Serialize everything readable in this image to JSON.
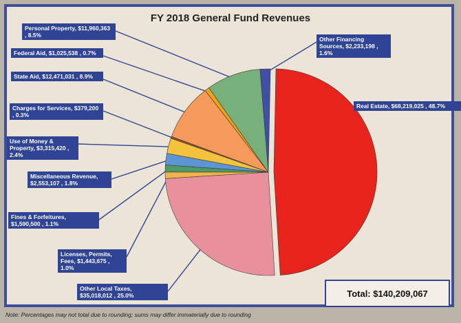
{
  "chart_data": {
    "type": "pie",
    "title": "FY 2018 General Fund Revenues",
    "slices": [
      {
        "name": "Real Estate",
        "amount": "$68,219,025",
        "percent": "48.7%",
        "value": 48.7,
        "color": "#e8231c",
        "label": "Real Estate, $68,219,025 , 48.7%"
      },
      {
        "name": "Other Local Taxes",
        "amount": "$35,018,012",
        "percent": "25.0%",
        "value": 25.0,
        "color": "#e8919c",
        "label": "Other Local Taxes, $35,018,012 , 25.0%"
      },
      {
        "name": "Licenses, Permits, Fees",
        "amount": "$1,443,675",
        "percent": "1.0%",
        "value": 1.0,
        "color": "#f2b24e",
        "label": "Licenses, Permits, Fees, $1,443,675 , 1.0%"
      },
      {
        "name": "Fines & Forfeitures",
        "amount": "$1,590,500",
        "percent": "1.1%",
        "value": 1.1,
        "color": "#4f9a62",
        "label": "Fines & Forfeitures, $1,590,500 , 1.1%"
      },
      {
        "name": "Miscellaneous Revenue",
        "amount": "$2,553,107",
        "percent": "1.8%",
        "value": 1.8,
        "color": "#5b95d4",
        "label": "Miscellaneous Revenue, $2,553,107 , 1.8%"
      },
      {
        "name": "Use of Money & Property",
        "amount": "$3,315,420",
        "percent": "2.4%",
        "value": 2.4,
        "color": "#f5c23e",
        "label": "Use of Money & Property, $3,315,420 , 2.4%"
      },
      {
        "name": "Charges for Services",
        "amount": "$379,200",
        "percent": "0.3%",
        "value": 0.3,
        "color": "#8f4d32",
        "label": "Charges for Services, $379,200 , 0.3%"
      },
      {
        "name": "State Aid",
        "amount": "$12,471,031",
        "percent": "8.9%",
        "value": 8.9,
        "color": "#f59a5a",
        "label": "State Aid, $12,471,031 , 8.9%"
      },
      {
        "name": "Federal Aid",
        "amount": "$1,025,538",
        "percent": "0.7%",
        "value": 0.7,
        "color": "#f2a216",
        "label": "Federal Aid, $1,025,538 , 0.7%"
      },
      {
        "name": "Personal Property",
        "amount": "$11,960,363",
        "percent": "8.5%",
        "value": 8.5,
        "color": "#78b07c",
        "label": "Personal Property, $11,960,363 , 8.5%"
      },
      {
        "name": "Other Financing Sources",
        "amount": "$2,233,198",
        "percent": "1.6%",
        "value": 1.6,
        "color": "#3f4fa8",
        "label": "Other Financing Sources, $2,233,198 , 1.6%"
      }
    ],
    "total_label": "Total: $140,209,067",
    "note": "Note: Percentages may not total due to rounding; sums may differ immaterially due to rounding"
  }
}
